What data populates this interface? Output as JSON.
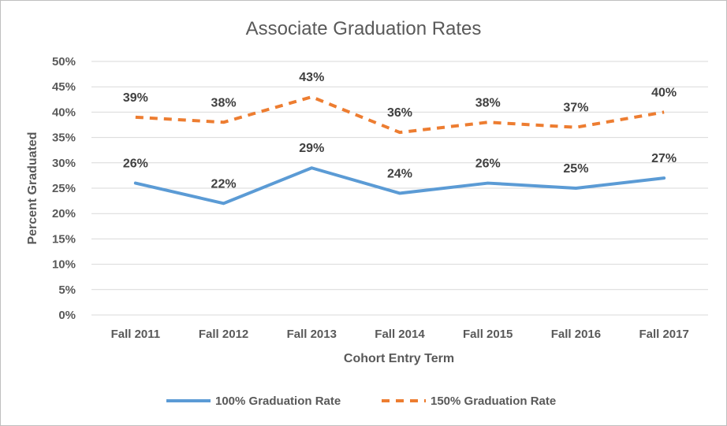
{
  "chart_data": {
    "type": "line",
    "title": "Associate Graduation Rates",
    "xlabel": "Cohort Entry Term",
    "ylabel": "Percent Graduated",
    "categories": [
      "Fall 2011",
      "Fall 2012",
      "Fall 2013",
      "Fall 2014",
      "Fall 2015",
      "Fall 2016",
      "Fall 2017"
    ],
    "ylim": [
      0,
      50
    ],
    "yticks": [
      "0%",
      "5%",
      "10%",
      "15%",
      "20%",
      "25%",
      "30%",
      "35%",
      "40%",
      "45%",
      "50%"
    ],
    "grid": true,
    "legend_position": "bottom",
    "series": [
      {
        "name": "100% Graduation Rate",
        "values": [
          26,
          22,
          29,
          24,
          26,
          25,
          27
        ],
        "labels": [
          "26%",
          "22%",
          "29%",
          "24%",
          "26%",
          "25%",
          "27%"
        ],
        "color": "#5b9bd5",
        "style": "solid"
      },
      {
        "name": "150% Graduation Rate",
        "values": [
          39,
          38,
          43,
          36,
          38,
          37,
          40
        ],
        "labels": [
          "39%",
          "38%",
          "43%",
          "36%",
          "38%",
          "37%",
          "40%"
        ],
        "color": "#ed7d31",
        "style": "dashed"
      }
    ]
  }
}
